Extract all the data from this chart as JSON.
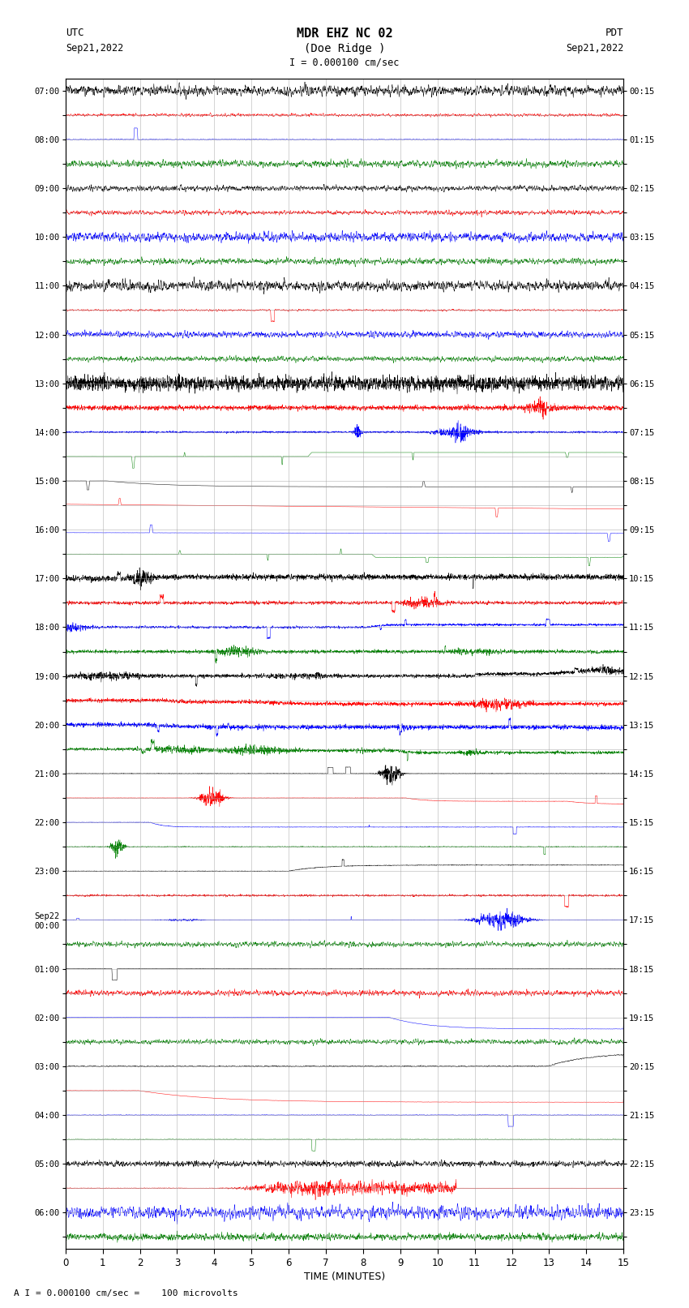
{
  "title_line1": "MDR EHZ NC 02",
  "title_line2": "(Doe Ridge )",
  "scale_text": "I = 0.000100 cm/sec",
  "left_label_line1": "UTC",
  "left_label_line2": "Sep21,2022",
  "right_label_line1": "PDT",
  "right_label_line2": "Sep21,2022",
  "bottom_label": "A I = 0.000100 cm/sec =    100 microvolts",
  "xlabel": "TIME (MINUTES)",
  "left_times": [
    "07:00",
    "",
    "08:00",
    "",
    "09:00",
    "",
    "10:00",
    "",
    "11:00",
    "",
    "12:00",
    "",
    "13:00",
    "",
    "14:00",
    "",
    "15:00",
    "",
    "16:00",
    "",
    "17:00",
    "",
    "18:00",
    "",
    "19:00",
    "",
    "20:00",
    "",
    "21:00",
    "",
    "22:00",
    "",
    "23:00",
    "",
    "Sep22\n00:00",
    "",
    "01:00",
    "",
    "02:00",
    "",
    "03:00",
    "",
    "04:00",
    "",
    "05:00",
    "",
    "06:00",
    ""
  ],
  "right_times": [
    "00:15",
    "",
    "01:15",
    "",
    "02:15",
    "",
    "03:15",
    "",
    "04:15",
    "",
    "05:15",
    "",
    "06:15",
    "",
    "07:15",
    "",
    "08:15",
    "",
    "09:15",
    "",
    "10:15",
    "",
    "11:15",
    "",
    "12:15",
    "",
    "13:15",
    "",
    "14:15",
    "",
    "15:15",
    "",
    "16:15",
    "",
    "17:15",
    "",
    "18:15",
    "",
    "19:15",
    "",
    "20:15",
    "",
    "21:15",
    "",
    "22:15",
    "",
    "23:15",
    ""
  ],
  "bg_color": "#ffffff",
  "grid_color": "#999999",
  "trace_colors": [
    "black",
    "red",
    "blue",
    "green"
  ],
  "n_rows": 48,
  "n_minutes": 15,
  "seed": 12345
}
